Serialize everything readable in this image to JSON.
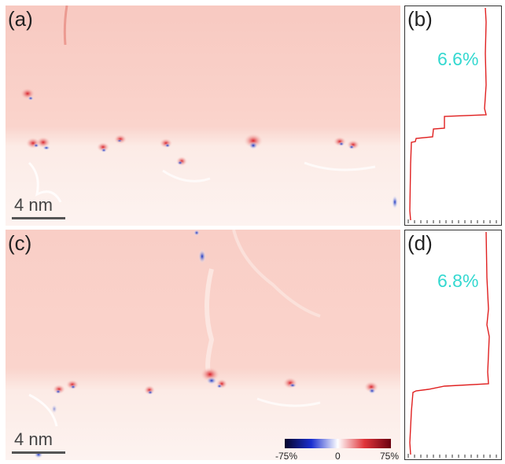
{
  "panels": {
    "a": {
      "label": "(a)",
      "scale_bar": "4 nm"
    },
    "b": {
      "label": "(b)",
      "strain": "6.6%"
    },
    "c": {
      "label": "(c)",
      "scale_bar": "4 nm"
    },
    "d": {
      "label": "(d)",
      "strain": "6.8%"
    }
  },
  "colorbar": {
    "min_label": "-75%",
    "mid_label": "0",
    "max_label": "75%",
    "colors": [
      "#06062a",
      "#1a2fd0",
      "#ffffff",
      "#e0353a",
      "#6a0010"
    ]
  },
  "map_colors": {
    "upper": "#fbd3cd",
    "lower": "#fdf3f0"
  }
}
